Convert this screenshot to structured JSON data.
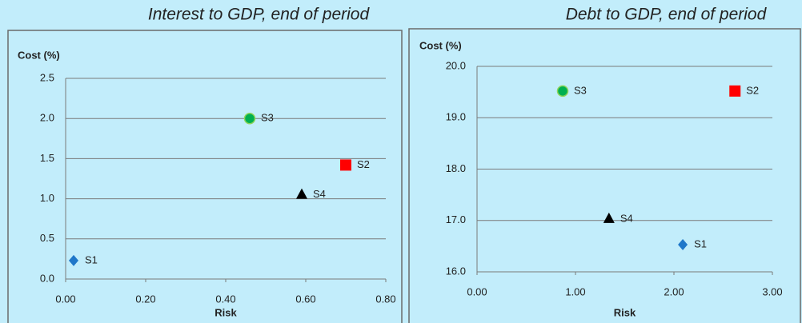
{
  "chart_data": [
    {
      "type": "scatter",
      "title": "Interest to GDP, end of period",
      "ylabel": "Cost (%)",
      "xlabel": "Risk",
      "xlim": [
        0,
        0.8
      ],
      "ylim": [
        0,
        2.5
      ],
      "xticks": [
        {
          "value": 0,
          "label": "0.00"
        },
        {
          "value": 0.2,
          "label": "0.20"
        },
        {
          "value": 0.4,
          "label": "0.40"
        },
        {
          "value": 0.6,
          "label": "0.60"
        },
        {
          "value": 0.8,
          "label": "0.80"
        }
      ],
      "yticks": [
        {
          "value": 0,
          "label": "0.0"
        },
        0.5,
        {
          "value": 1,
          "label": "1.0"
        },
        1.5,
        {
          "value": 2,
          "label": "2.0"
        },
        2.5
      ],
      "grid": true,
      "series": [
        {
          "name": "S1",
          "color": "#1f77c9",
          "marker": "diamond",
          "x": [
            0.02
          ],
          "values": [
            0.23
          ]
        },
        {
          "name": "S2",
          "color": "#ff0000",
          "marker": "square",
          "x": [
            0.7
          ],
          "values": [
            1.42
          ]
        },
        {
          "name": "S3",
          "color": "#00b050",
          "marker": "circle",
          "x": [
            0.46
          ],
          "values": [
            2.0
          ]
        },
        {
          "name": "S4",
          "color": "#000000",
          "marker": "triangle",
          "x": [
            0.59
          ],
          "values": [
            1.05
          ]
        }
      ]
    },
    {
      "type": "scatter",
      "title": "Debt to GDP, end of period",
      "ylabel": "Cost (%)",
      "xlabel": "Risk",
      "xlim": [
        0,
        3
      ],
      "ylim": [
        16,
        20
      ],
      "xticks": [
        {
          "value": 0,
          "label": "0.00"
        },
        {
          "value": 1,
          "label": "1.00"
        },
        {
          "value": 2,
          "label": "2.00"
        },
        {
          "value": 3,
          "label": "3.00"
        }
      ],
      "yticks": [
        {
          "value": 16,
          "label": "16.0"
        },
        {
          "value": 17,
          "label": "17.0"
        },
        {
          "value": 18,
          "label": "18.0"
        },
        {
          "value": 19,
          "label": "19.0"
        },
        {
          "value": 20,
          "label": "20.0"
        }
      ],
      "grid": true,
      "series": [
        {
          "name": "S1",
          "color": "#1f77c9",
          "marker": "diamond",
          "x": [
            2.09
          ],
          "values": [
            16.53
          ]
        },
        {
          "name": "S2",
          "color": "#ff0000",
          "marker": "square",
          "x": [
            2.62
          ],
          "values": [
            19.52
          ]
        },
        {
          "name": "S3",
          "color": "#00b050",
          "marker": "circle",
          "x": [
            0.87
          ],
          "values": [
            19.52
          ]
        },
        {
          "name": "S4",
          "color": "#000000",
          "marker": "triangle",
          "x": [
            1.34
          ],
          "values": [
            17.03
          ]
        }
      ]
    }
  ]
}
